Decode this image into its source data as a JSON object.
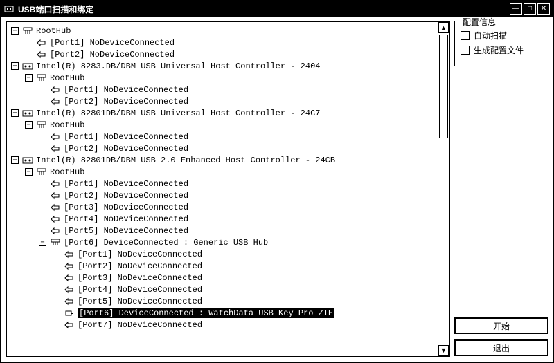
{
  "window": {
    "title": "USB端口扫描和绑定",
    "min_glyph": "—",
    "max_glyph": "□",
    "close_glyph": "✕"
  },
  "config": {
    "legend": "配置信息",
    "auto_scan": "自动扫描",
    "gen_config_file": "生成配置文件"
  },
  "buttons": {
    "start": "开始",
    "exit": "退出"
  },
  "scrollbar": {
    "up": "▲",
    "down": "▼"
  },
  "expander": {
    "plus": "+",
    "minus": "−"
  },
  "tree": [
    {
      "label": "RootHub",
      "icon": "hub",
      "exp": "minus",
      "children": [
        {
          "label": "[Port1] NoDeviceConnected",
          "icon": "port",
          "exp": "none"
        },
        {
          "label": "[Port2] NoDeviceConnected",
          "icon": "port",
          "exp": "none"
        }
      ]
    },
    {
      "label": "Intel(R) 8283.DB/DBM USB Universal Host Controller - 2404",
      "icon": "controller",
      "exp": "minus",
      "children": [
        {
          "label": "RootHub",
          "icon": "hub",
          "exp": "minus",
          "children": [
            {
              "label": "[Port1] NoDeviceConnected",
              "icon": "port",
              "exp": "none"
            },
            {
              "label": "[Port2] NoDeviceConnected",
              "icon": "port",
              "exp": "none"
            }
          ]
        }
      ]
    },
    {
      "label": "Intel(R) 82801DB/DBM USB Universal Host Controller - 24C7",
      "icon": "controller",
      "exp": "minus",
      "children": [
        {
          "label": "RootHub",
          "icon": "hub",
          "exp": "minus",
          "children": [
            {
              "label": "[Port1] NoDeviceConnected",
              "icon": "port",
              "exp": "none"
            },
            {
              "label": "[Port2] NoDeviceConnected",
              "icon": "port",
              "exp": "none"
            }
          ]
        }
      ]
    },
    {
      "label": "Intel(R) 82801DB/DBM USB 2.0 Enhanced Host Controller - 24CB",
      "icon": "controller",
      "exp": "minus",
      "children": [
        {
          "label": "RootHub",
          "icon": "hub",
          "exp": "minus",
          "children": [
            {
              "label": "[Port1] NoDeviceConnected",
              "icon": "port",
              "exp": "none"
            },
            {
              "label": "[Port2] NoDeviceConnected",
              "icon": "port",
              "exp": "none"
            },
            {
              "label": "[Port3] NoDeviceConnected",
              "icon": "port",
              "exp": "none"
            },
            {
              "label": "[Port4] NoDeviceConnected",
              "icon": "port",
              "exp": "none"
            },
            {
              "label": "[Port5] NoDeviceConnected",
              "icon": "port",
              "exp": "none"
            },
            {
              "label": "[Port6] DeviceConnected :  Generic USB Hub",
              "icon": "hub-connected",
              "exp": "minus",
              "children": [
                {
                  "label": "[Port1] NoDeviceConnected",
                  "icon": "port",
                  "exp": "none"
                },
                {
                  "label": "[Port2] NoDeviceConnected",
                  "icon": "port",
                  "exp": "none"
                },
                {
                  "label": "[Port3] NoDeviceConnected",
                  "icon": "port",
                  "exp": "none"
                },
                {
                  "label": "[Port4] NoDeviceConnected",
                  "icon": "port",
                  "exp": "none"
                },
                {
                  "label": "[Port5] NoDeviceConnected",
                  "icon": "port",
                  "exp": "none"
                },
                {
                  "label": "[Port6] DeviceConnected :  WatchData USB Key Pro ZTE ",
                  "icon": "device",
                  "exp": "none",
                  "selected": true
                },
                {
                  "label": "[Port7] NoDeviceConnected",
                  "icon": "port",
                  "exp": "none"
                }
              ]
            }
          ]
        }
      ]
    }
  ],
  "colors": {
    "fg": "#000000",
    "bg": "#ffffff",
    "sel_bg": "#000000",
    "sel_fg": "#ffffff"
  }
}
